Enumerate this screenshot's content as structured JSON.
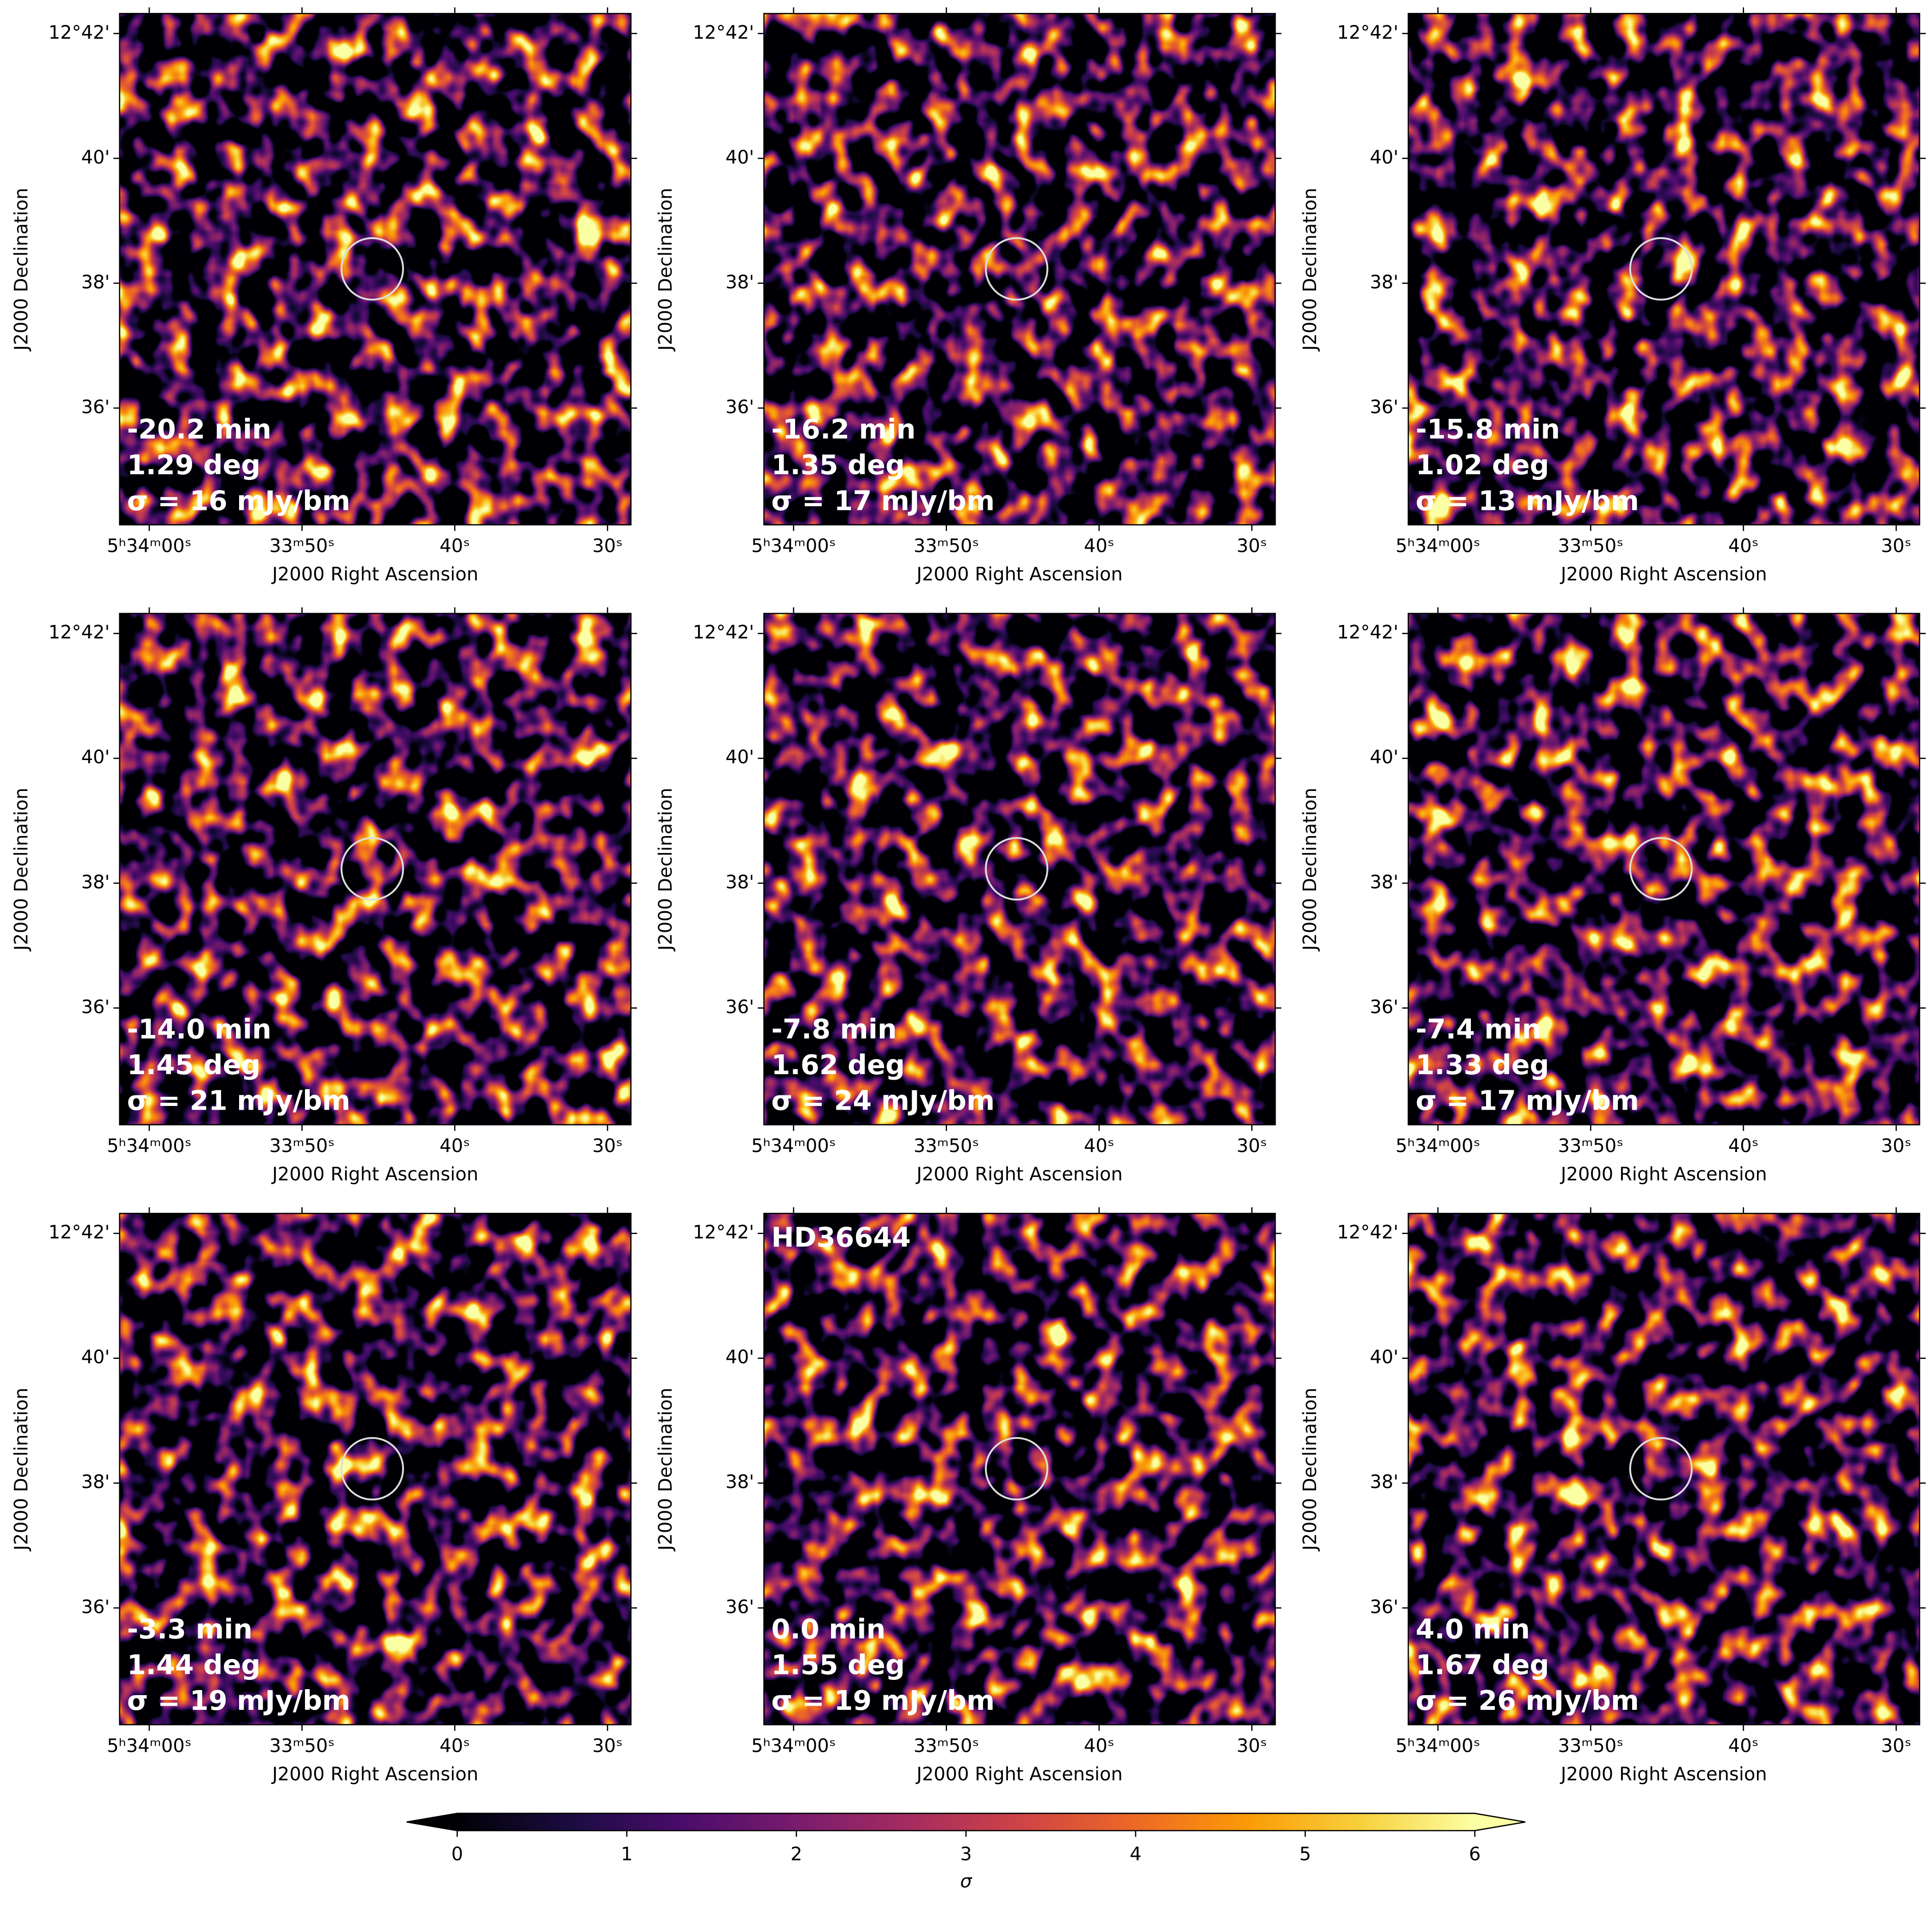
{
  "chart_data": [
    {
      "type": "image",
      "xlabel": "J2000 Right Ascension",
      "ylabel": "J2000 Declination",
      "xlim": [
        61.94,
        28.47
      ],
      "ylim": [
        34.13,
        42.32
      ],
      "xticks": [
        {
          "value": 60,
          "label": "5ʰ34ᵐ00ˢ"
        },
        {
          "value": 50,
          "label": "33ᵐ50ˢ"
        },
        {
          "value": 40,
          "label": "40ˢ"
        },
        {
          "value": 30,
          "label": "30ˢ"
        }
      ],
      "yticks": [
        {
          "value": 42,
          "label": "12°42'"
        },
        {
          "value": 40,
          "label": "40'"
        },
        {
          "value": 38,
          "label": "38'"
        },
        {
          "value": 36,
          "label": "36'"
        }
      ],
      "circle": {
        "x": 45.4,
        "y": 38.23
      },
      "annotations": [
        "-20.2 min",
        "1.29 deg",
        "σ =  16 mJy/bm"
      ]
    },
    {
      "type": "image",
      "xlabel": "J2000 Right Ascension",
      "ylabel": "J2000 Declination",
      "xlim": [
        61.94,
        28.47
      ],
      "ylim": [
        34.13,
        42.32
      ],
      "xticks": [
        {
          "value": 60,
          "label": "5ʰ34ᵐ00ˢ"
        },
        {
          "value": 50,
          "label": "33ᵐ50ˢ"
        },
        {
          "value": 40,
          "label": "40ˢ"
        },
        {
          "value": 30,
          "label": "30ˢ"
        }
      ],
      "yticks": [
        {
          "value": 42,
          "label": "12°42'"
        },
        {
          "value": 40,
          "label": "40'"
        },
        {
          "value": 38,
          "label": "38'"
        },
        {
          "value": 36,
          "label": "36'"
        }
      ],
      "circle": {
        "x": 45.4,
        "y": 38.23
      },
      "annotations": [
        "-16.2 min",
        "1.35 deg",
        "σ =  17 mJy/bm"
      ]
    },
    {
      "type": "image",
      "xlabel": "J2000 Right Ascension",
      "ylabel": "J2000 Declination",
      "xlim": [
        61.94,
        28.47
      ],
      "ylim": [
        34.13,
        42.32
      ],
      "xticks": [
        {
          "value": 60,
          "label": "5ʰ34ᵐ00ˢ"
        },
        {
          "value": 50,
          "label": "33ᵐ50ˢ"
        },
        {
          "value": 40,
          "label": "40ˢ"
        },
        {
          "value": 30,
          "label": "30ˢ"
        }
      ],
      "yticks": [
        {
          "value": 42,
          "label": "12°42'"
        },
        {
          "value": 40,
          "label": "40'"
        },
        {
          "value": 38,
          "label": "38'"
        },
        {
          "value": 36,
          "label": "36'"
        }
      ],
      "circle": {
        "x": 45.4,
        "y": 38.23
      },
      "annotations": [
        "-15.8 min",
        "1.02 deg",
        "σ =  13 mJy/bm"
      ]
    },
    {
      "type": "image",
      "xlabel": "J2000 Right Ascension",
      "ylabel": "J2000 Declination",
      "xlim": [
        61.94,
        28.47
      ],
      "ylim": [
        34.13,
        42.32
      ],
      "xticks": [
        {
          "value": 60,
          "label": "5ʰ34ᵐ00ˢ"
        },
        {
          "value": 50,
          "label": "33ᵐ50ˢ"
        },
        {
          "value": 40,
          "label": "40ˢ"
        },
        {
          "value": 30,
          "label": "30ˢ"
        }
      ],
      "yticks": [
        {
          "value": 42,
          "label": "12°42'"
        },
        {
          "value": 40,
          "label": "40'"
        },
        {
          "value": 38,
          "label": "38'"
        },
        {
          "value": 36,
          "label": "36'"
        }
      ],
      "circle": {
        "x": 45.4,
        "y": 38.23
      },
      "annotations": [
        "-14.0 min",
        "1.45 deg",
        "σ =  21 mJy/bm"
      ]
    },
    {
      "type": "image",
      "xlabel": "J2000 Right Ascension",
      "ylabel": "J2000 Declination",
      "xlim": [
        61.94,
        28.47
      ],
      "ylim": [
        34.13,
        42.32
      ],
      "xticks": [
        {
          "value": 60,
          "label": "5ʰ34ᵐ00ˢ"
        },
        {
          "value": 50,
          "label": "33ᵐ50ˢ"
        },
        {
          "value": 40,
          "label": "40ˢ"
        },
        {
          "value": 30,
          "label": "30ˢ"
        }
      ],
      "yticks": [
        {
          "value": 42,
          "label": "12°42'"
        },
        {
          "value": 40,
          "label": "40'"
        },
        {
          "value": 38,
          "label": "38'"
        },
        {
          "value": 36,
          "label": "36'"
        }
      ],
      "circle": {
        "x": 45.4,
        "y": 38.23
      },
      "annotations": [
        "-7.8 min",
        "1.62 deg",
        "σ =  24 mJy/bm"
      ]
    },
    {
      "type": "image",
      "xlabel": "J2000 Right Ascension",
      "ylabel": "J2000 Declination",
      "xlim": [
        61.94,
        28.47
      ],
      "ylim": [
        34.13,
        42.32
      ],
      "xticks": [
        {
          "value": 60,
          "label": "5ʰ34ᵐ00ˢ"
        },
        {
          "value": 50,
          "label": "33ᵐ50ˢ"
        },
        {
          "value": 40,
          "label": "40ˢ"
        },
        {
          "value": 30,
          "label": "30ˢ"
        }
      ],
      "yticks": [
        {
          "value": 42,
          "label": "12°42'"
        },
        {
          "value": 40,
          "label": "40'"
        },
        {
          "value": 38,
          "label": "38'"
        },
        {
          "value": 36,
          "label": "36'"
        }
      ],
      "circle": {
        "x": 45.4,
        "y": 38.23
      },
      "annotations": [
        "-7.4 min",
        "1.33 deg",
        "σ =  17 mJy/bm"
      ]
    },
    {
      "type": "image",
      "xlabel": "J2000 Right Ascension",
      "ylabel": "J2000 Declination",
      "xlim": [
        61.94,
        28.47
      ],
      "ylim": [
        34.13,
        42.32
      ],
      "xticks": [
        {
          "value": 60,
          "label": "5ʰ34ᵐ00ˢ"
        },
        {
          "value": 50,
          "label": "33ᵐ50ˢ"
        },
        {
          "value": 40,
          "label": "40ˢ"
        },
        {
          "value": 30,
          "label": "30ˢ"
        }
      ],
      "yticks": [
        {
          "value": 42,
          "label": "12°42'"
        },
        {
          "value": 40,
          "label": "40'"
        },
        {
          "value": 38,
          "label": "38'"
        },
        {
          "value": 36,
          "label": "36'"
        }
      ],
      "circle": {
        "x": 45.4,
        "y": 38.23
      },
      "annotations": [
        "-3.3 min",
        "1.44 deg",
        "σ =  19 mJy/bm"
      ]
    },
    {
      "type": "image",
      "title": "HD36644",
      "xlabel": "J2000 Right Ascension",
      "ylabel": "J2000 Declination",
      "xlim": [
        61.94,
        28.47
      ],
      "ylim": [
        34.13,
        42.32
      ],
      "xticks": [
        {
          "value": 60,
          "label": "5ʰ34ᵐ00ˢ"
        },
        {
          "value": 50,
          "label": "33ᵐ50ˢ"
        },
        {
          "value": 40,
          "label": "40ˢ"
        },
        {
          "value": 30,
          "label": "30ˢ"
        }
      ],
      "yticks": [
        {
          "value": 42,
          "label": "12°42'"
        },
        {
          "value": 40,
          "label": "40'"
        },
        {
          "value": 38,
          "label": "38'"
        },
        {
          "value": 36,
          "label": "36'"
        }
      ],
      "circle": {
        "x": 45.4,
        "y": 38.23
      },
      "annotations": [
        "0.0 min",
        "1.55 deg",
        "σ =  19 mJy/bm"
      ]
    },
    {
      "type": "image",
      "xlabel": "J2000 Right Ascension",
      "ylabel": "J2000 Declination",
      "xlim": [
        61.94,
        28.47
      ],
      "ylim": [
        34.13,
        42.32
      ],
      "xticks": [
        {
          "value": 60,
          "label": "5ʰ34ᵐ00ˢ"
        },
        {
          "value": 50,
          "label": "33ᵐ50ˢ"
        },
        {
          "value": 40,
          "label": "40ˢ"
        },
        {
          "value": 30,
          "label": "30ˢ"
        }
      ],
      "yticks": [
        {
          "value": 42,
          "label": "12°42'"
        },
        {
          "value": 40,
          "label": "40'"
        },
        {
          "value": 38,
          "label": "38'"
        },
        {
          "value": 36,
          "label": "36'"
        }
      ],
      "circle": {
        "x": 45.4,
        "y": 38.23
      },
      "annotations": [
        "4.0 min",
        "1.67 deg",
        "σ =  26 mJy/bm"
      ]
    },
    {
      "type": "colorbar",
      "xlabel": "σ",
      "xlim": [
        0,
        6
      ],
      "xticks": [
        0,
        1,
        2,
        3,
        4,
        5,
        6
      ],
      "colormap": "inferno",
      "extend": "both"
    }
  ]
}
